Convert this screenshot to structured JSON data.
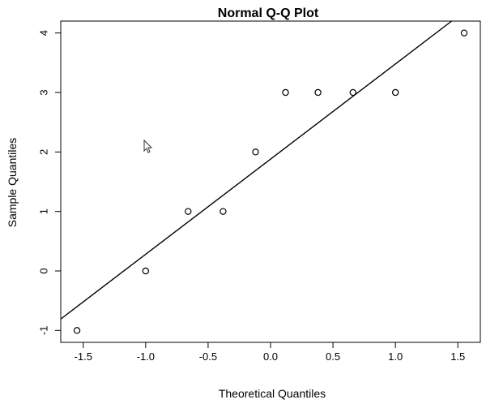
{
  "chart_data": {
    "type": "scatter",
    "title": "Normal Q-Q Plot",
    "xlabel": "Theoretical Quantiles",
    "ylabel": "Sample Quantiles",
    "xlim": [
      -1.68,
      1.68
    ],
    "ylim": [
      -1.2,
      4.2
    ],
    "x_ticks": [
      -1.5,
      -1.0,
      -0.5,
      0.0,
      0.5,
      1.0,
      1.5
    ],
    "x_tick_labels": [
      "-1.5",
      "-1.0",
      "-0.5",
      "0.0",
      "0.5",
      "1.0",
      "1.5"
    ],
    "y_ticks": [
      -1,
      0,
      1,
      2,
      3,
      4
    ],
    "y_tick_labels": [
      "-1",
      "0",
      "1",
      "2",
      "3",
      "4"
    ],
    "points": [
      {
        "x": -1.55,
        "y": -1
      },
      {
        "x": -1.0,
        "y": 0
      },
      {
        "x": -0.66,
        "y": 1
      },
      {
        "x": -0.38,
        "y": 1
      },
      {
        "x": -0.12,
        "y": 2
      },
      {
        "x": 0.12,
        "y": 3
      },
      {
        "x": 0.38,
        "y": 3
      },
      {
        "x": 0.66,
        "y": 3
      },
      {
        "x": 1.0,
        "y": 3
      },
      {
        "x": 1.55,
        "y": 4
      }
    ],
    "reference_line": {
      "slope": 1.6,
      "intercept": 1.88
    },
    "grid": false,
    "legend": "none"
  }
}
